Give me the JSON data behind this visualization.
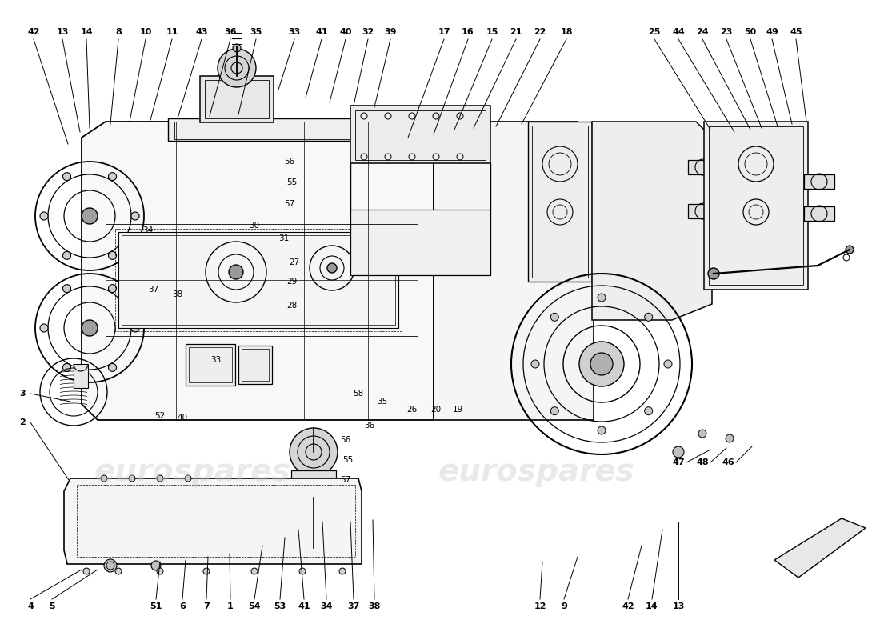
{
  "background_color": "#ffffff",
  "watermark_color": "#c8c8c8",
  "top_left_labels": [
    [
      "42",
      42,
      40,
      85,
      180
    ],
    [
      "13",
      78,
      40,
      100,
      165
    ],
    [
      "14",
      108,
      40,
      112,
      160
    ],
    [
      "8",
      148,
      40,
      138,
      155
    ],
    [
      "10",
      182,
      40,
      162,
      152
    ],
    [
      "11",
      215,
      40,
      188,
      150
    ],
    [
      "43",
      252,
      40,
      222,
      148
    ],
    [
      "36",
      288,
      40,
      262,
      145
    ],
    [
      "35",
      320,
      40,
      298,
      143
    ],
    [
      "33",
      368,
      40,
      348,
      112
    ],
    [
      "41",
      402,
      40,
      382,
      122
    ],
    [
      "40",
      432,
      40,
      412,
      128
    ],
    [
      "32",
      460,
      40,
      442,
      132
    ],
    [
      "39",
      488,
      40,
      468,
      134
    ]
  ],
  "top_mid_labels": [
    [
      "17",
      555,
      40,
      510,
      172
    ],
    [
      "16",
      585,
      40,
      542,
      168
    ],
    [
      "15",
      615,
      40,
      568,
      162
    ],
    [
      "21",
      645,
      40,
      592,
      160
    ],
    [
      "22",
      675,
      40,
      620,
      158
    ],
    [
      "18",
      708,
      40,
      652,
      155
    ]
  ],
  "top_right_labels": [
    [
      "25",
      818,
      40,
      888,
      162
    ],
    [
      "44",
      848,
      40,
      918,
      165
    ],
    [
      "24",
      878,
      40,
      938,
      162
    ],
    [
      "23",
      908,
      40,
      952,
      160
    ],
    [
      "50",
      938,
      40,
      972,
      158
    ],
    [
      "49",
      965,
      40,
      990,
      155
    ],
    [
      "45",
      995,
      40,
      1008,
      152
    ]
  ],
  "bottom_left_labels": [
    [
      "4",
      38,
      758,
      102,
      712
    ],
    [
      "5",
      65,
      758,
      122,
      712
    ],
    [
      "51",
      195,
      758,
      200,
      702
    ],
    [
      "6",
      228,
      758,
      232,
      700
    ],
    [
      "7",
      258,
      758,
      260,
      696
    ],
    [
      "1",
      288,
      758,
      287,
      692
    ],
    [
      "54",
      318,
      758,
      328,
      682
    ],
    [
      "53",
      350,
      758,
      356,
      672
    ],
    [
      "41",
      380,
      758,
      373,
      662
    ],
    [
      "34",
      408,
      758,
      403,
      652
    ],
    [
      "37",
      442,
      758,
      438,
      652
    ],
    [
      "38",
      468,
      758,
      466,
      650
    ]
  ],
  "bottom_right_labels": [
    [
      "12",
      675,
      758,
      678,
      702
    ],
    [
      "9",
      705,
      758,
      722,
      696
    ],
    [
      "42",
      785,
      758,
      802,
      682
    ],
    [
      "14",
      815,
      758,
      828,
      662
    ],
    [
      "13",
      848,
      758,
      848,
      652
    ]
  ],
  "internal_labels": [
    [
      "56",
      362,
      202
    ],
    [
      "55",
      365,
      228
    ],
    [
      "57",
      362,
      255
    ],
    [
      "34",
      185,
      288
    ],
    [
      "37",
      192,
      362
    ],
    [
      "38",
      222,
      368
    ],
    [
      "30",
      318,
      282
    ],
    [
      "31",
      355,
      298
    ],
    [
      "27",
      368,
      328
    ],
    [
      "29",
      365,
      352
    ],
    [
      "28",
      365,
      382
    ],
    [
      "58",
      448,
      492
    ],
    [
      "35",
      478,
      502
    ],
    [
      "26",
      515,
      512
    ],
    [
      "20",
      545,
      512
    ],
    [
      "19",
      572,
      512
    ],
    [
      "33",
      270,
      450
    ],
    [
      "52",
      200,
      520
    ],
    [
      "40",
      228,
      522
    ],
    [
      "56",
      432,
      550
    ],
    [
      "55",
      435,
      575
    ],
    [
      "57",
      432,
      600
    ],
    [
      "36",
      462,
      532
    ]
  ]
}
